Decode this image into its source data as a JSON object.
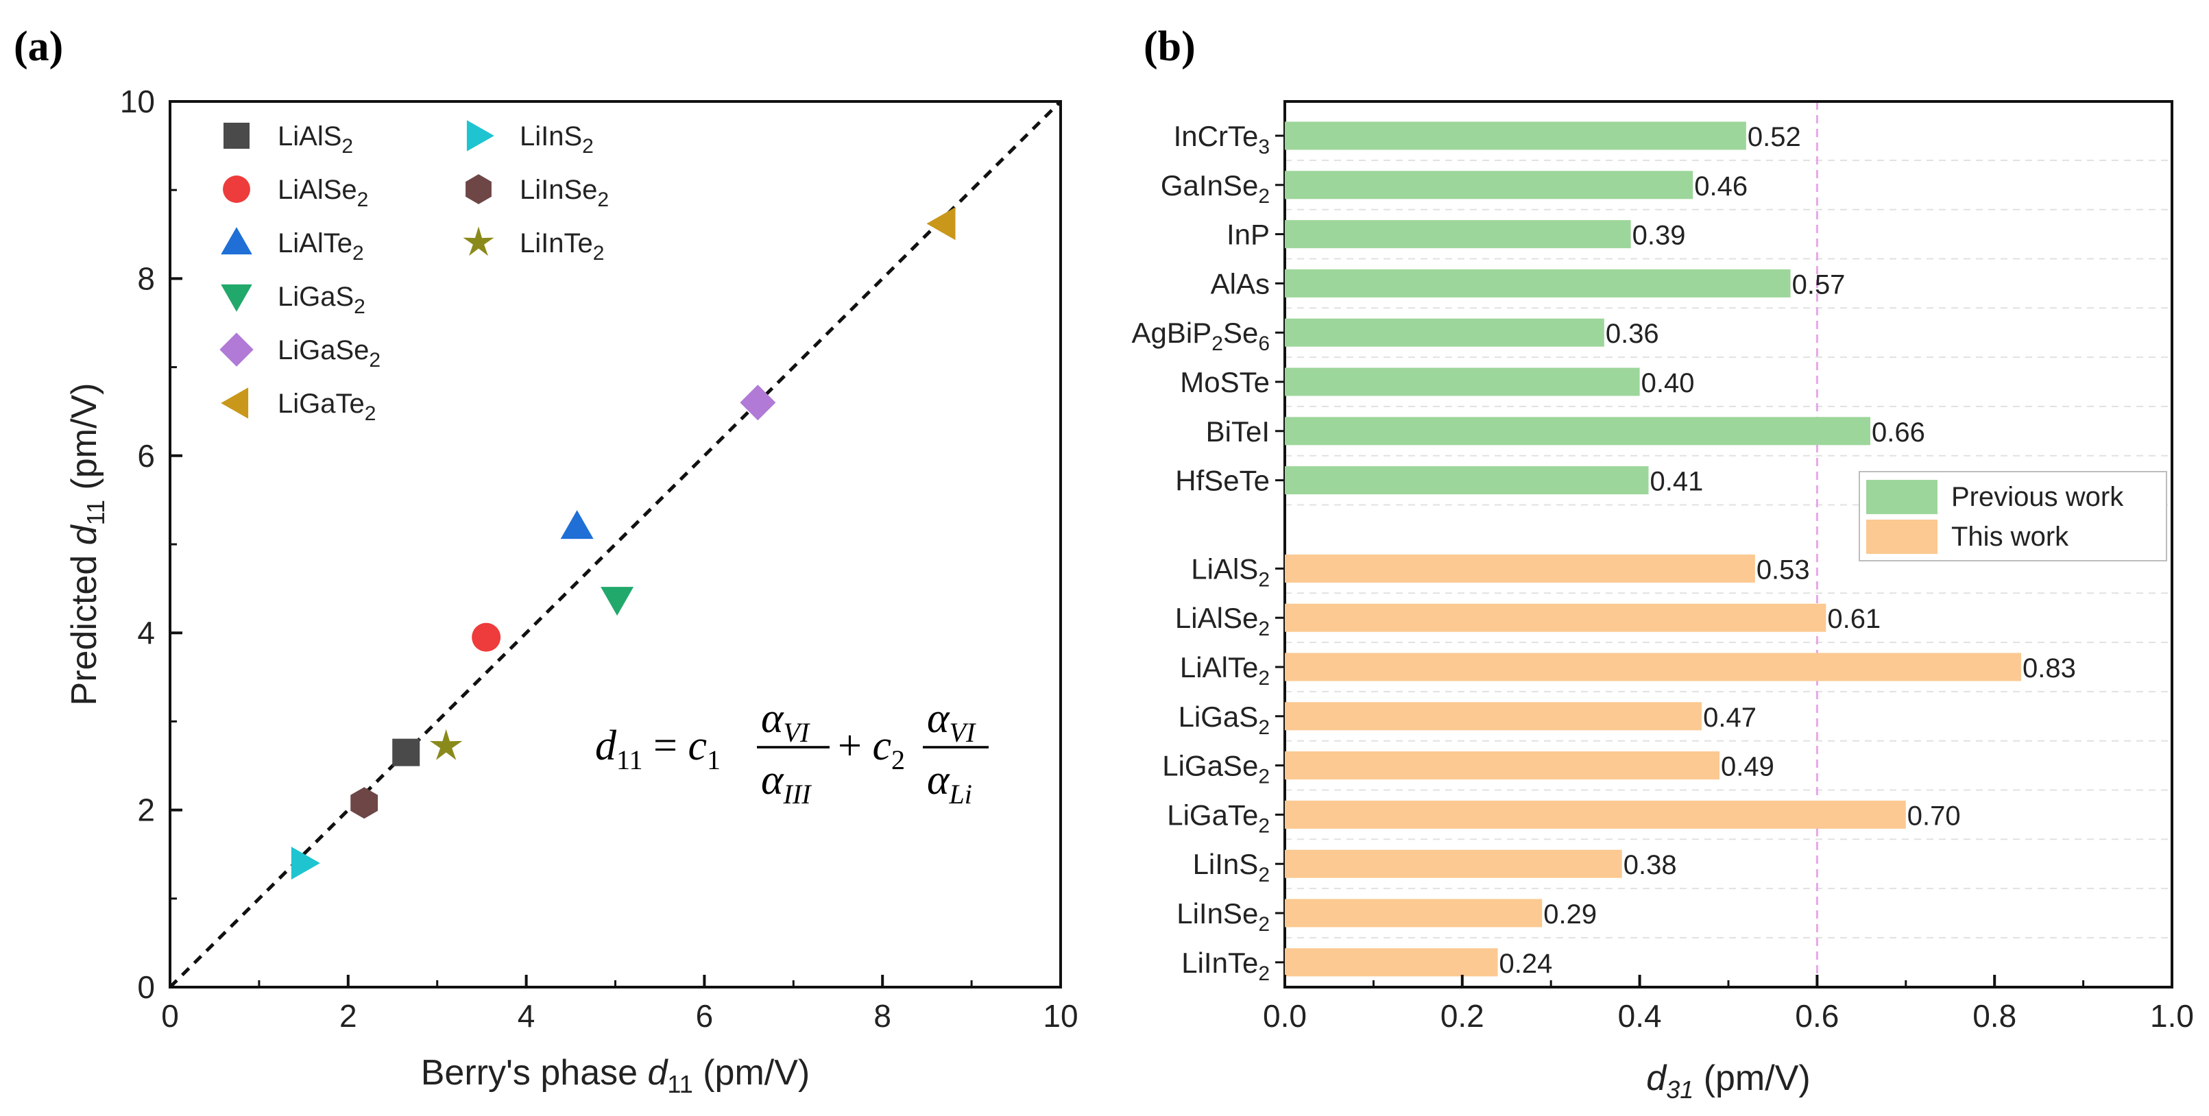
{
  "panel_labels": {
    "a": "(a)",
    "b": "(b)"
  },
  "chart_data": [
    {
      "type": "scatter",
      "title": "",
      "xlabel": "Berry's phase d11 (pm/V)",
      "ylabel": "Predicted d11 (pm/V)",
      "xlabel_parts": {
        "pre": "Berry's phase ",
        "var": "d",
        "sub": "11",
        "post": " (pm/V)"
      },
      "ylabel_parts": {
        "pre": "Predicted ",
        "var": "d",
        "sub": "11",
        "post": " (pm/V)"
      },
      "xlim": [
        0,
        10
      ],
      "ylim": [
        0,
        10
      ],
      "xticks": [
        0,
        2,
        4,
        6,
        8,
        10
      ],
      "yticks": [
        0,
        2,
        4,
        6,
        8,
        10
      ],
      "reference_line": {
        "type": "y=x",
        "style": "dashed",
        "color": "#111111"
      },
      "equation": {
        "lhs": "d",
        "lhs_sub": "11",
        "eq": "=",
        "c1": "c",
        "c1_sub": "1",
        "plus": "+",
        "c2": "c",
        "c2_sub": "2",
        "num1": "α",
        "num1_sub": "VI",
        "den1": "α",
        "den1_sub": "III",
        "num2": "α",
        "num2_sub": "VI",
        "den2": "α",
        "den2_sub": "Li"
      },
      "legend": {
        "placement": "top-left"
      },
      "series": [
        {
          "name": "LiAlS2",
          "base": "LiAlS",
          "sub": "2",
          "x": 2.65,
          "y": 2.65,
          "marker": "square",
          "color": "#4a4a4a"
        },
        {
          "name": "LiAlSe2",
          "base": "LiAlSe",
          "sub": "2",
          "x": 3.55,
          "y": 3.95,
          "marker": "circle",
          "color": "#ee3b3b"
        },
        {
          "name": "LiAlTe2",
          "base": "LiAlTe",
          "sub": "2",
          "x": 4.57,
          "y": 5.2,
          "marker": "triangle-up",
          "color": "#1f6fd6"
        },
        {
          "name": "LiGaS2",
          "base": "LiGaS",
          "sub": "2",
          "x": 5.02,
          "y": 4.38,
          "marker": "triangle-down",
          "color": "#21a86b"
        },
        {
          "name": "LiGaSe2",
          "base": "LiGaSe",
          "sub": "2",
          "x": 6.6,
          "y": 6.6,
          "marker": "diamond",
          "color": "#b07ad6"
        },
        {
          "name": "LiGaTe2",
          "base": "LiGaTe",
          "sub": "2",
          "x": 8.68,
          "y": 8.62,
          "marker": "triangle-left",
          "color": "#c9981a"
        },
        {
          "name": "LiInS2",
          "base": "LiInS",
          "sub": "2",
          "x": 1.5,
          "y": 1.4,
          "marker": "triangle-right",
          "color": "#1ec4d0"
        },
        {
          "name": "LiInSe2",
          "base": "LiInSe",
          "sub": "2",
          "x": 2.18,
          "y": 2.08,
          "marker": "hexagon",
          "color": "#6e4646"
        },
        {
          "name": "LiInTe2",
          "base": "LiInTe",
          "sub": "2",
          "x": 3.1,
          "y": 2.72,
          "marker": "star",
          "color": "#8a8a1c"
        }
      ]
    },
    {
      "type": "bar",
      "orientation": "horizontal",
      "title": "",
      "xlabel": "d31 (pm/V)",
      "xlabel_parts": {
        "var": "d",
        "sub": "31",
        "post": " (pm/V)"
      },
      "xlim": [
        0,
        1.0
      ],
      "xticks": [
        "0.0",
        "0.2",
        "0.4",
        "0.6",
        "0.8",
        "1.0"
      ],
      "reference_line": {
        "x": 0.6,
        "style": "dashed",
        "color": "#e8a6e8"
      },
      "legend": {
        "placement": "center-right",
        "entries": [
          {
            "label": "Previous work",
            "color": "#9dd69b"
          },
          {
            "label": "This work",
            "color": "#fbc991"
          }
        ]
      },
      "groups": [
        {
          "name": "Previous work",
          "color": "#9dd69b",
          "items": [
            {
              "base": "InCrTe",
              "sub": "3",
              "tail": "",
              "value": 0.52,
              "label": "0.52"
            },
            {
              "base": "GaInSe",
              "sub": "2",
              "tail": "",
              "value": 0.46,
              "label": "0.46"
            },
            {
              "base": "InP",
              "sub": "",
              "tail": "",
              "value": 0.39,
              "label": "0.39"
            },
            {
              "base": "AlAs",
              "sub": "",
              "tail": "",
              "value": 0.57,
              "label": "0.57"
            },
            {
              "base": "AgBiP",
              "sub": "2",
              "tail": "Se",
              "sub2": "6",
              "value": 0.36,
              "label": "0.36"
            },
            {
              "base": "MoSTe",
              "sub": "",
              "tail": "",
              "value": 0.4,
              "label": "0.40"
            },
            {
              "base": "BiTeI",
              "sub": "",
              "tail": "",
              "value": 0.66,
              "label": "0.66"
            },
            {
              "base": "HfSeTe",
              "sub": "",
              "tail": "",
              "value": 0.41,
              "label": "0.41"
            }
          ]
        },
        {
          "name": "This work",
          "color": "#fbc991",
          "items": [
            {
              "base": "LiAlS",
              "sub": "2",
              "tail": "",
              "value": 0.53,
              "label": "0.53"
            },
            {
              "base": "LiAlSe",
              "sub": "2",
              "tail": "",
              "value": 0.61,
              "label": "0.61"
            },
            {
              "base": "LiAlTe",
              "sub": "2",
              "tail": "",
              "value": 0.83,
              "label": "0.83"
            },
            {
              "base": "LiGaS",
              "sub": "2",
              "tail": "",
              "value": 0.47,
              "label": "0.47"
            },
            {
              "base": "LiGaSe",
              "sub": "2",
              "tail": "",
              "value": 0.49,
              "label": "0.49"
            },
            {
              "base": "LiGaTe",
              "sub": "2",
              "tail": "",
              "value": 0.7,
              "label": "0.70"
            },
            {
              "base": "LiInS",
              "sub": "2",
              "tail": "",
              "value": 0.38,
              "label": "0.38"
            },
            {
              "base": "LiInSe",
              "sub": "2",
              "tail": "",
              "value": 0.29,
              "label": "0.29"
            },
            {
              "base": "LiInTe",
              "sub": "2",
              "tail": "",
              "value": 0.24,
              "label": "0.24"
            }
          ]
        }
      ]
    }
  ]
}
